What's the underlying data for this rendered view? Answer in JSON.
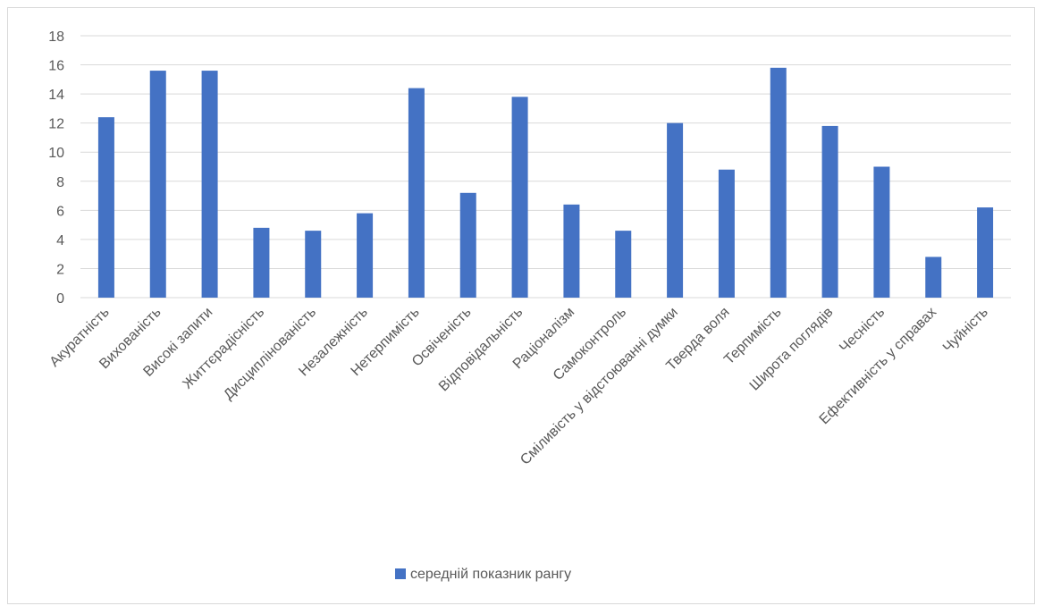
{
  "chart_data": {
    "type": "bar",
    "categories": [
      "Акуратність",
      "Вихованість",
      "Високі запити",
      "Життєрадісність",
      "Дисциплінованість",
      "Незалежність",
      "Нетерпимість",
      "Освіченість",
      "Відповідальність",
      "Раціоналізм",
      "Самоконтроль",
      "Сміливість у відстоюванні думки",
      "Тверда воля",
      "Терпимість",
      "Широта поглядів",
      "Чесність",
      "Ефективність у справах",
      "Чуйність"
    ],
    "series": [
      {
        "name": "середній показник рангу",
        "values": [
          12.4,
          15.6,
          15.6,
          4.8,
          4.6,
          5.8,
          14.4,
          7.2,
          13.8,
          6.4,
          4.6,
          12.0,
          8.8,
          15.8,
          11.8,
          9.0,
          2.8,
          6.2
        ]
      }
    ],
    "y_ticks": [
      "0",
      "2",
      "4",
      "6",
      "8",
      "10",
      "12",
      "14",
      "16",
      "18"
    ],
    "ylim": [
      0,
      18
    ],
    "grid": true,
    "legend_position": "bottom",
    "colors": {
      "bar": "#4472c4",
      "grid": "#d9d9d9",
      "text": "#595959"
    }
  }
}
